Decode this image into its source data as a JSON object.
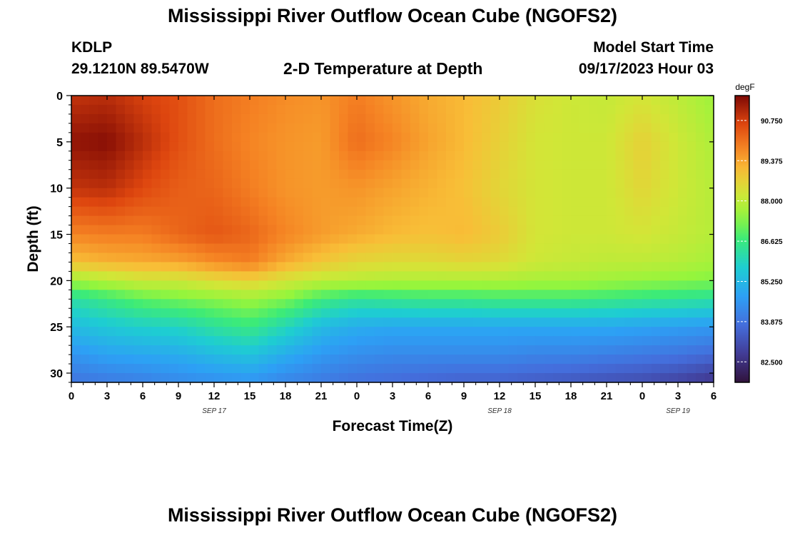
{
  "header": {
    "title": "Mississippi River Outflow Ocean Cube (NGOFS2)",
    "station_id": "KDLP",
    "station_coords": "29.1210N  89.5470W",
    "plot_title": "2-D Temperature at Depth",
    "model_start_label": "Model Start Time",
    "model_start_value": "09/17/2023 Hour 03"
  },
  "footer": {
    "title": "Mississippi River Outflow Ocean Cube (NGOFS2)"
  },
  "chart_data": {
    "type": "heatmap",
    "title": "2-D Temperature at Depth",
    "xlabel": "Forecast Time(Z)",
    "ylabel": "Depth (ft)",
    "x_range_hours": [
      0,
      54
    ],
    "y_range_ft": [
      0,
      31
    ],
    "x_tick_labels": [
      "0",
      "3",
      "6",
      "9",
      "12",
      "15",
      "18",
      "21",
      "0",
      "3",
      "6",
      "9",
      "12",
      "15",
      "18",
      "21",
      "0",
      "3",
      "6"
    ],
    "x_tick_hours": [
      0,
      3,
      6,
      9,
      12,
      15,
      18,
      21,
      24,
      27,
      30,
      33,
      36,
      39,
      42,
      45,
      48,
      51,
      54
    ],
    "date_labels": [
      {
        "label": "SEP 17",
        "hour": 12
      },
      {
        "label": "SEP 18",
        "hour": 36
      },
      {
        "label": "SEP 19",
        "hour": 51
      }
    ],
    "y_ticks": [
      0,
      5,
      10,
      15,
      20,
      25,
      30
    ],
    "colorbar": {
      "unit": "degF",
      "min": 81.8,
      "max": 91.6,
      "ticks": [
        "90.750",
        "89.375",
        "88.000",
        "86.625",
        "85.250",
        "83.875",
        "82.500"
      ],
      "tick_values": [
        90.75,
        89.375,
        88.0,
        86.625,
        85.25,
        83.875,
        82.5
      ]
    },
    "depth_rows_ft": [
      0,
      5,
      10,
      15,
      18,
      20,
      22,
      25,
      28,
      31
    ],
    "columns": [
      {
        "hour": 0,
        "temps": [
          90.9,
          91.4,
          90.9,
          89.8,
          89.0,
          87.6,
          86.2,
          85.3,
          84.5,
          83.9
        ]
      },
      {
        "hour": 3,
        "temps": [
          91.0,
          91.5,
          91.0,
          89.9,
          89.2,
          87.9,
          86.6,
          85.6,
          84.8,
          84.0
        ]
      },
      {
        "hour": 6,
        "temps": [
          90.7,
          91.0,
          90.6,
          89.9,
          89.3,
          88.2,
          87.0,
          85.8,
          84.9,
          84.1
        ]
      },
      {
        "hour": 9,
        "temps": [
          90.5,
          90.5,
          90.3,
          90.2,
          89.4,
          88.2,
          87.2,
          85.9,
          85.0,
          84.3
        ]
      },
      {
        "hour": 12,
        "temps": [
          90.1,
          90.1,
          90.2,
          90.4,
          89.7,
          88.5,
          87.4,
          86.3,
          85.3,
          84.4
        ]
      },
      {
        "hour": 15,
        "temps": [
          89.9,
          89.8,
          89.9,
          90.2,
          89.9,
          88.7,
          87.6,
          86.6,
          85.5,
          84.5
        ]
      },
      {
        "hour": 18,
        "temps": [
          89.7,
          89.6,
          89.6,
          89.8,
          89.3,
          88.3,
          87.3,
          86.0,
          85.0,
          84.2
        ]
      },
      {
        "hour": 21,
        "temps": [
          89.6,
          89.5,
          89.5,
          89.5,
          88.9,
          88.0,
          86.7,
          85.3,
          84.6,
          84.0
        ]
      },
      {
        "hour": 24,
        "temps": [
          89.9,
          90.1,
          89.6,
          89.3,
          88.6,
          87.9,
          86.4,
          85.0,
          84.4,
          83.8
        ]
      },
      {
        "hour": 27,
        "temps": [
          89.6,
          89.8,
          89.4,
          89.1,
          88.5,
          87.8,
          86.5,
          84.9,
          84.3,
          83.7
        ]
      },
      {
        "hour": 30,
        "temps": [
          89.3,
          89.4,
          89.2,
          89.0,
          88.5,
          87.8,
          86.6,
          84.9,
          84.3,
          83.6
        ]
      },
      {
        "hour": 33,
        "temps": [
          89.1,
          89.1,
          89.0,
          89.1,
          88.6,
          87.8,
          86.6,
          84.9,
          84.3,
          83.5
        ]
      },
      {
        "hour": 36,
        "temps": [
          88.8,
          88.7,
          88.6,
          88.8,
          88.5,
          87.8,
          86.7,
          84.9,
          84.3,
          83.5
        ]
      },
      {
        "hour": 39,
        "temps": [
          88.4,
          88.3,
          88.3,
          88.3,
          88.2,
          87.7,
          86.7,
          84.9,
          84.2,
          83.4
        ]
      },
      {
        "hour": 42,
        "temps": [
          88.2,
          88.2,
          88.2,
          88.2,
          88.1,
          87.7,
          86.7,
          84.9,
          84.2,
          83.3
        ]
      },
      {
        "hour": 45,
        "temps": [
          88.1,
          88.2,
          88.2,
          88.2,
          88.0,
          87.6,
          86.6,
          84.9,
          84.1,
          83.2
        ]
      },
      {
        "hour": 48,
        "temps": [
          88.3,
          88.7,
          88.6,
          88.3,
          88.0,
          87.5,
          86.5,
          84.8,
          84.0,
          83.1
        ]
      },
      {
        "hour": 51,
        "temps": [
          88.0,
          88.2,
          88.2,
          88.1,
          87.9,
          87.4,
          86.4,
          84.7,
          83.9,
          82.9
        ]
      },
      {
        "hour": 54,
        "temps": [
          87.6,
          87.8,
          87.9,
          87.9,
          87.7,
          87.3,
          86.3,
          84.6,
          83.7,
          82.6
        ]
      }
    ]
  }
}
